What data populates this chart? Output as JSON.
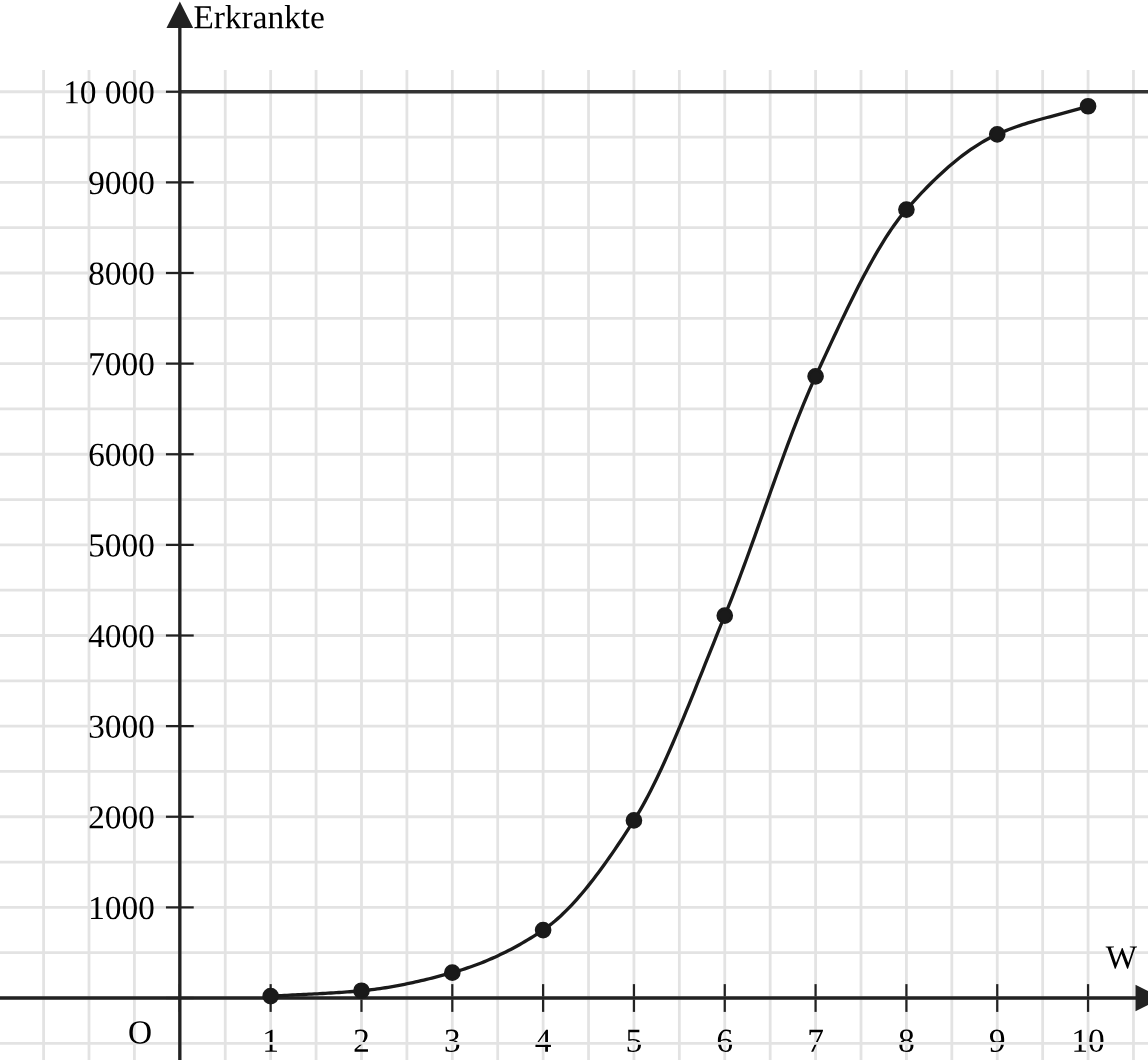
{
  "chart_data": {
    "type": "line",
    "ylabel": "Erkrankte",
    "xlabel": "W",
    "x": [
      1,
      2,
      3,
      4,
      5,
      6,
      7,
      8,
      9,
      10
    ],
    "series": [
      {
        "color": "#1a1a1a",
        "values": [
          20,
          80,
          280,
          750,
          1960,
          4220,
          6860,
          8700,
          9530,
          9840
        ]
      }
    ],
    "xlim": [
      -1.98,
      10.66
    ],
    "ylim": [
      -684,
      10240
    ],
    "xticks": [
      {
        "value": 0,
        "label": null
      },
      1,
      2,
      3,
      4,
      5,
      6,
      7,
      8,
      9,
      10
    ],
    "yticks": [
      {
        "value": 0,
        "label": null
      },
      1000,
      2000,
      3000,
      4000,
      5000,
      6000,
      7000,
      8000,
      9000,
      {
        "value": 10000,
        "label": "10 000"
      }
    ],
    "ref_lines": [
      {
        "axis": "y",
        "value": 10000,
        "color": "#333333"
      }
    ],
    "annotations": [
      "O"
    ],
    "grid": true,
    "marker": "circle",
    "line_style": "solid"
  }
}
